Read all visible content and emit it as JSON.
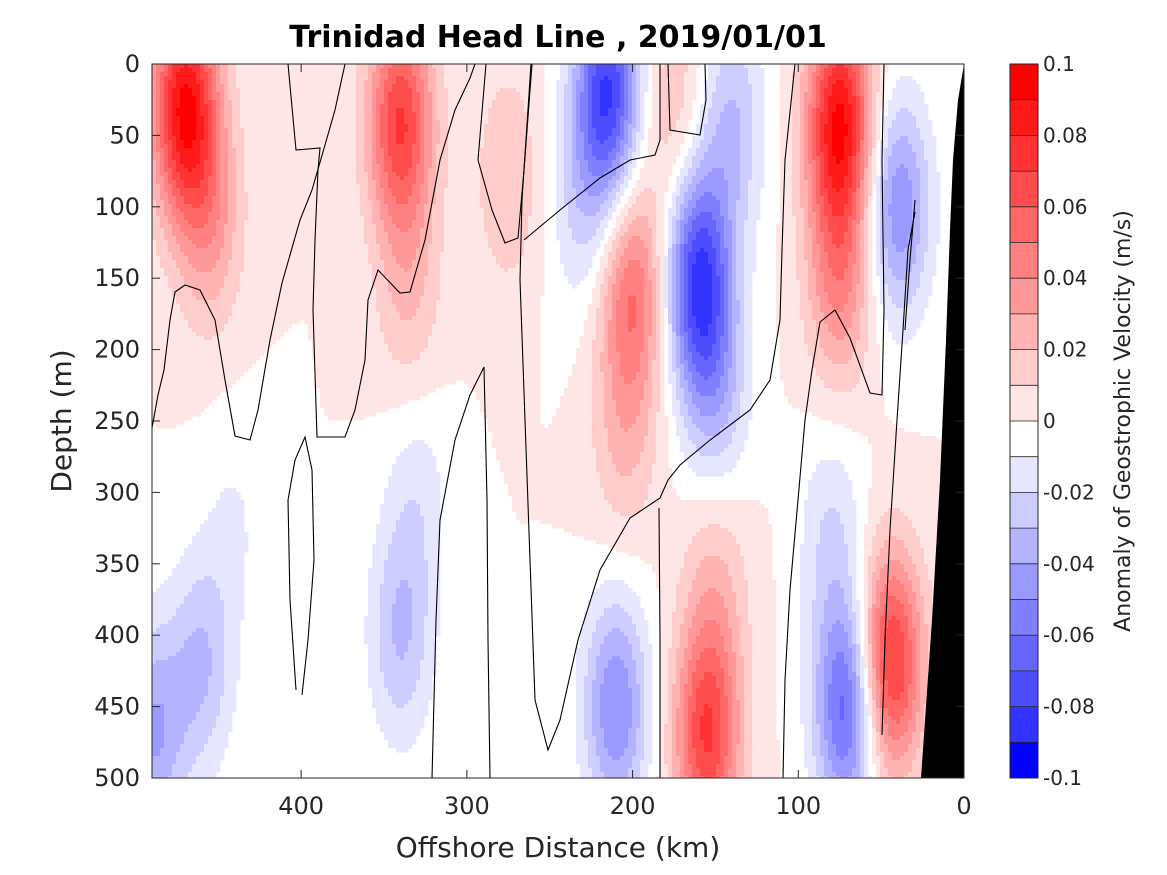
{
  "chart_data": {
    "type": "heatmap",
    "title": "Trinidad Head Line , 2019/01/01",
    "xlabel": "Offshore Distance (km)",
    "ylabel": "Depth (m)",
    "colorbar_label": "Anomaly of Geostrophic Velocity (m/s)",
    "xlim": [
      490,
      0
    ],
    "ylim": [
      0,
      500
    ],
    "x_reversed": true,
    "y_reversed": true,
    "x_ticks": [
      400,
      300,
      200,
      100,
      0
    ],
    "y_ticks": [
      0,
      50,
      100,
      150,
      200,
      250,
      300,
      350,
      400,
      450,
      500
    ],
    "colorbar_ticks": [
      {
        "value": 0.1,
        "label": "0.1"
      },
      {
        "value": 0.08,
        "label": "0.08"
      },
      {
        "value": 0.06,
        "label": "0.06"
      },
      {
        "value": 0.04,
        "label": "0.04"
      },
      {
        "value": 0.02,
        "label": "0.02"
      },
      {
        "value": 0,
        "label": "0"
      },
      {
        "value": -0.02,
        "label": "-0.02"
      },
      {
        "value": -0.04,
        "label": "-0.04"
      },
      {
        "value": -0.06,
        "label": "-0.06"
      },
      {
        "value": -0.08,
        "label": "-0.08"
      },
      {
        "value": -0.1,
        "label": "-0.1"
      }
    ],
    "colorbar_levels": [
      {
        "min": 0.09,
        "max": 0.1,
        "color": "#ff0000"
      },
      {
        "min": 0.08,
        "max": 0.09,
        "color": "#ff1a1a"
      },
      {
        "min": 0.07,
        "max": 0.08,
        "color": "#ff3333"
      },
      {
        "min": 0.06,
        "max": 0.07,
        "color": "#ff4d4d"
      },
      {
        "min": 0.05,
        "max": 0.06,
        "color": "#ff6666"
      },
      {
        "min": 0.04,
        "max": 0.05,
        "color": "#ff8080"
      },
      {
        "min": 0.03,
        "max": 0.04,
        "color": "#ff9999"
      },
      {
        "min": 0.02,
        "max": 0.03,
        "color": "#ffb3b3"
      },
      {
        "min": 0.01,
        "max": 0.02,
        "color": "#ffcccc"
      },
      {
        "min": 0.0,
        "max": 0.01,
        "color": "#ffe6e6"
      },
      {
        "min": -0.01,
        "max": 0.0,
        "color": "#ffffff"
      },
      {
        "min": -0.02,
        "max": -0.01,
        "color": "#e6e6ff"
      },
      {
        "min": -0.03,
        "max": -0.02,
        "color": "#ccccff"
      },
      {
        "min": -0.04,
        "max": -0.03,
        "color": "#b3b3ff"
      },
      {
        "min": -0.05,
        "max": -0.04,
        "color": "#9999ff"
      },
      {
        "min": -0.06,
        "max": -0.05,
        "color": "#8080ff"
      },
      {
        "min": -0.07,
        "max": -0.06,
        "color": "#6666ff"
      },
      {
        "min": -0.08,
        "max": -0.07,
        "color": "#4d4dff"
      },
      {
        "min": -0.09,
        "max": -0.08,
        "color": "#3333ff"
      },
      {
        "min": -0.1,
        "max": -0.09,
        "color": "#0000ff"
      }
    ],
    "bathymetry_color": "#000000",
    "velocity_cores": [
      {
        "x": 470,
        "y": 30,
        "value": 0.09
      },
      {
        "x": 455,
        "y": 110,
        "value": 0.03
      },
      {
        "x": 340,
        "y": 40,
        "value": 0.07
      },
      {
        "x": 335,
        "y": 160,
        "value": 0.02
      },
      {
        "x": 275,
        "y": 80,
        "value": 0.02
      },
      {
        "x": 215,
        "y": 20,
        "value": -0.08
      },
      {
        "x": 230,
        "y": 100,
        "value": -0.02
      },
      {
        "x": 200,
        "y": 160,
        "value": 0.05
      },
      {
        "x": 205,
        "y": 260,
        "value": 0.02
      },
      {
        "x": 175,
        "y": 30,
        "value": 0.02
      },
      {
        "x": 160,
        "y": 150,
        "value": -0.08
      },
      {
        "x": 150,
        "y": 230,
        "value": -0.03
      },
      {
        "x": 140,
        "y": 40,
        "value": -0.03
      },
      {
        "x": 75,
        "y": 40,
        "value": 0.09
      },
      {
        "x": 75,
        "y": 150,
        "value": 0.04
      },
      {
        "x": 40,
        "y": 100,
        "value": -0.05
      },
      {
        "x": 490,
        "y": 470,
        "value": -0.04
      },
      {
        "x": 460,
        "y": 420,
        "value": -0.03
      },
      {
        "x": 440,
        "y": 320,
        "value": -0.01
      },
      {
        "x": 340,
        "y": 400,
        "value": -0.03
      },
      {
        "x": 330,
        "y": 300,
        "value": -0.015
      },
      {
        "x": 210,
        "y": 450,
        "value": -0.05
      },
      {
        "x": 155,
        "y": 470,
        "value": 0.07
      },
      {
        "x": 150,
        "y": 360,
        "value": 0.02
      },
      {
        "x": 70,
        "y": 450,
        "value": -0.07
      },
      {
        "x": 80,
        "y": 330,
        "value": -0.02
      },
      {
        "x": 45,
        "y": 420,
        "value": 0.08
      }
    ]
  }
}
